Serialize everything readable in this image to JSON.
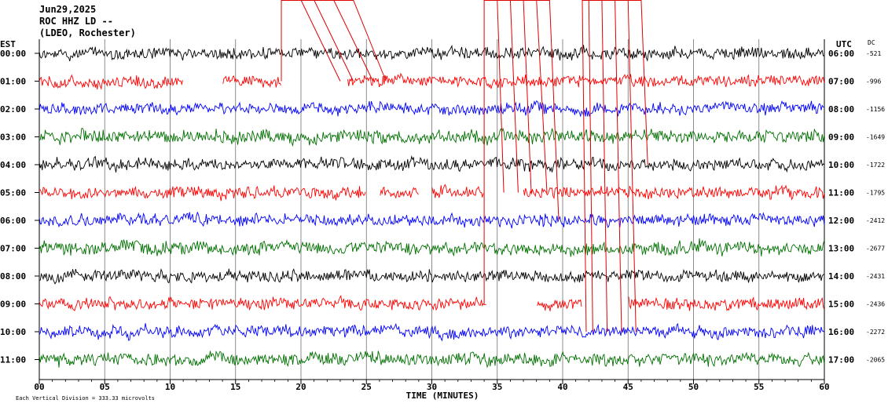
{
  "header": {
    "date": "Jun29,2025",
    "station": "ROC HHZ LD --",
    "network": "(LDEO, Rochester)"
  },
  "left_label": "EST",
  "right_label": "UTC",
  "dc_label": "DC",
  "footer_note": "Each Vertical Division =  333.33 microvolts",
  "chart_data": {
    "type": "line",
    "xlabel": "TIME (MINUTES)",
    "xlim": [
      0,
      60
    ],
    "x_ticks": [
      "00",
      "05",
      "10",
      "15",
      "20",
      "25",
      "30",
      "35",
      "40",
      "45",
      "50",
      "55",
      "60"
    ],
    "series": [
      {
        "est": "00:00",
        "utc": "06:00",
        "dc": "-521",
        "color": "#000000"
      },
      {
        "est": "01:00",
        "utc": "07:00",
        "dc": "-996",
        "color": "#ff0000"
      },
      {
        "est": "02:00",
        "utc": "08:00",
        "dc": "-1156",
        "color": "#0000ff"
      },
      {
        "est": "03:00",
        "utc": "09:00",
        "dc": "-1649",
        "color": "#007000"
      },
      {
        "est": "04:00",
        "utc": "10:00",
        "dc": "-1722",
        "color": "#000000"
      },
      {
        "est": "05:00",
        "utc": "11:00",
        "dc": "-1795",
        "color": "#ff0000"
      },
      {
        "est": "06:00",
        "utc": "12:00",
        "dc": "-2412",
        "color": "#0000ff"
      },
      {
        "est": "07:00",
        "utc": "13:00",
        "dc": "-2677",
        "color": "#007000"
      },
      {
        "est": "08:00",
        "utc": "14:00",
        "dc": "-2431",
        "color": "#000000"
      },
      {
        "est": "09:00",
        "utc": "15:00",
        "dc": "-2436",
        "color": "#ff0000"
      },
      {
        "est": "10:00",
        "utc": "16:00",
        "dc": "-2272",
        "color": "#0000ff"
      },
      {
        "est": "11:00",
        "utc": "17:00",
        "dc": "-2065",
        "color": "#007000"
      }
    ],
    "gaps": [
      {
        "row": 1,
        "from": 11.0,
        "to": 14.0
      },
      {
        "row": 1,
        "from": 18.5,
        "to": 23.5
      },
      {
        "row": 5,
        "from": 25.0,
        "to": 26.0
      },
      {
        "row": 5,
        "from": 29.0,
        "to": 30.0
      },
      {
        "row": 5,
        "from": 34.0,
        "to": 37.0
      },
      {
        "row": 9,
        "from": 34.2,
        "to": 38.0
      },
      {
        "row": 9,
        "from": 41.5,
        "to": 45.0
      }
    ],
    "picks": [
      {
        "row": 1,
        "from": 18.5,
        "to": 18.5
      },
      {
        "row": 1,
        "from": 20.0,
        "to": 23.0
      },
      {
        "row": 1,
        "from": 21.0,
        "to": 24.0
      },
      {
        "row": 1,
        "from": 22.5,
        "to": 25.5
      },
      {
        "row": 1,
        "from": 24.0,
        "to": 26.5
      },
      {
        "row": 9,
        "from": 34.0,
        "to": 34.0
      },
      {
        "row": 5,
        "from": 35.0,
        "to": 35.5
      },
      {
        "row": 5,
        "from": 36.0,
        "to": 36.6
      },
      {
        "row": 5,
        "from": 37.0,
        "to": 37.6
      },
      {
        "row": 5,
        "from": 38.0,
        "to": 38.8
      },
      {
        "row": 6,
        "from": 39.0,
        "to": 39.7
      },
      {
        "row": 10,
        "from": 41.5,
        "to": 41.8
      },
      {
        "row": 10,
        "from": 42.0,
        "to": 42.3
      },
      {
        "row": 10,
        "from": 43.0,
        "to": 43.4
      },
      {
        "row": 10,
        "from": 44.0,
        "to": 44.5
      },
      {
        "row": 10,
        "from": 45.0,
        "to": 45.6
      },
      {
        "row": 4,
        "from": 46.0,
        "to": 46.5
      }
    ]
  }
}
